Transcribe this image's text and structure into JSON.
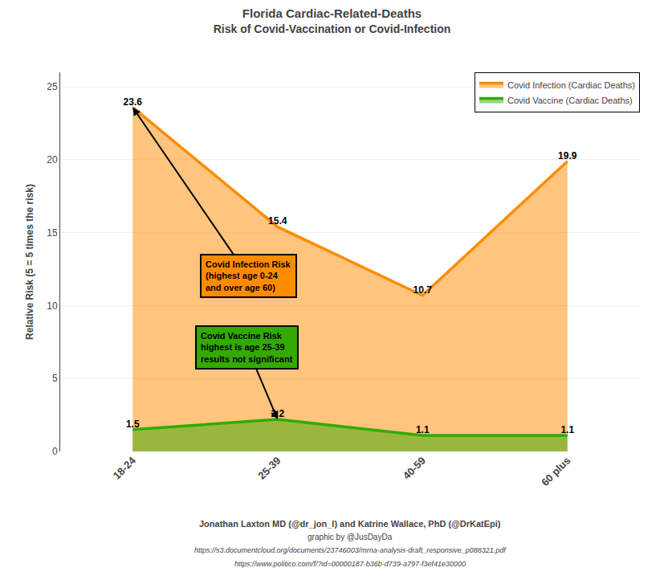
{
  "chart_data": {
    "type": "line",
    "title": "Florida Cardiac-Related-Deaths",
    "subtitle": "Risk of Covid-Vaccination or Covid-Infection",
    "categories": [
      "18-24",
      "25-39",
      "40-59",
      "60 plus"
    ],
    "series": [
      {
        "name": "Covid Infection (Cardiac Deaths)",
        "color": "#FF8C00",
        "values": [
          23.6,
          15.4,
          10.7,
          19.9
        ]
      },
      {
        "name": "Covid Vaccine (Cardiac Deaths)",
        "color": "#33AA00",
        "values": [
          1.5,
          2.2,
          1.1,
          1.1
        ]
      }
    ],
    "ylabel": "Relative Risk (5 = 5 times the risk)",
    "ylim": [
      0,
      26
    ],
    "yticks": [
      0,
      5,
      10,
      15,
      20,
      25
    ],
    "grid": true,
    "legend": "upper right",
    "data_labels": true,
    "annotations": [
      "Covid Infection Risk\n(highest age 0-24\nand over age 60)",
      "Covid Vaccine Risk\nhighest is age 25-39\nresults not significant"
    ],
    "footer": [
      "Jonathan Laxton MD (@dr_jon_l) and Katrine Wallace, PhD (@DrKatEpi)",
      "graphic by @JusDayDa",
      "https://s3.documentcloud.org/documents/23746003/mrna-analysis-draft_responsive_p088321.pdf",
      "https://www.politico.com/f/?id=00000187-b36b-d739-a797-f3ef41e30000"
    ]
  }
}
